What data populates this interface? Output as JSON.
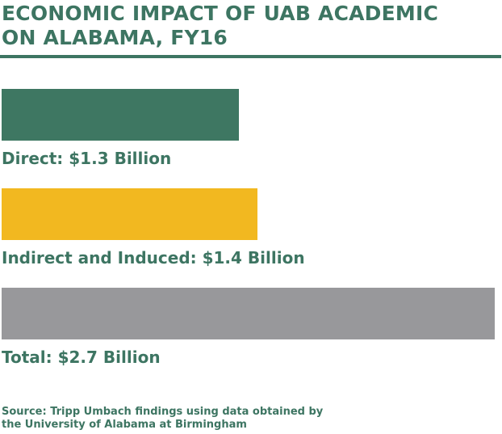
{
  "chart_data": {
    "type": "bar",
    "orientation": "horizontal",
    "title_lines": [
      "ECONOMIC IMPACT OF UAB ACADEMIC",
      "ON ALABAMA, FY16"
    ],
    "unit": "Billion USD",
    "xlim": [
      0,
      2.7
    ],
    "grid": false,
    "bars": [
      {
        "label": "Direct: $1.3 Billion",
        "value": 1.3,
        "color": "#3e7762"
      },
      {
        "label": "Indirect and Induced: $1.4 Billion",
        "value": 1.4,
        "color": "#f2b820"
      },
      {
        "label": "Total: $2.7 Billion",
        "value": 2.7,
        "color": "#98989b"
      }
    ]
  },
  "source_lines": [
    "Source: Tripp Umbach findings using data obtained by",
    "the University of Alabama at Birmingham"
  ],
  "colors": {
    "text": "#3d7562",
    "rule": "#3d7562"
  }
}
